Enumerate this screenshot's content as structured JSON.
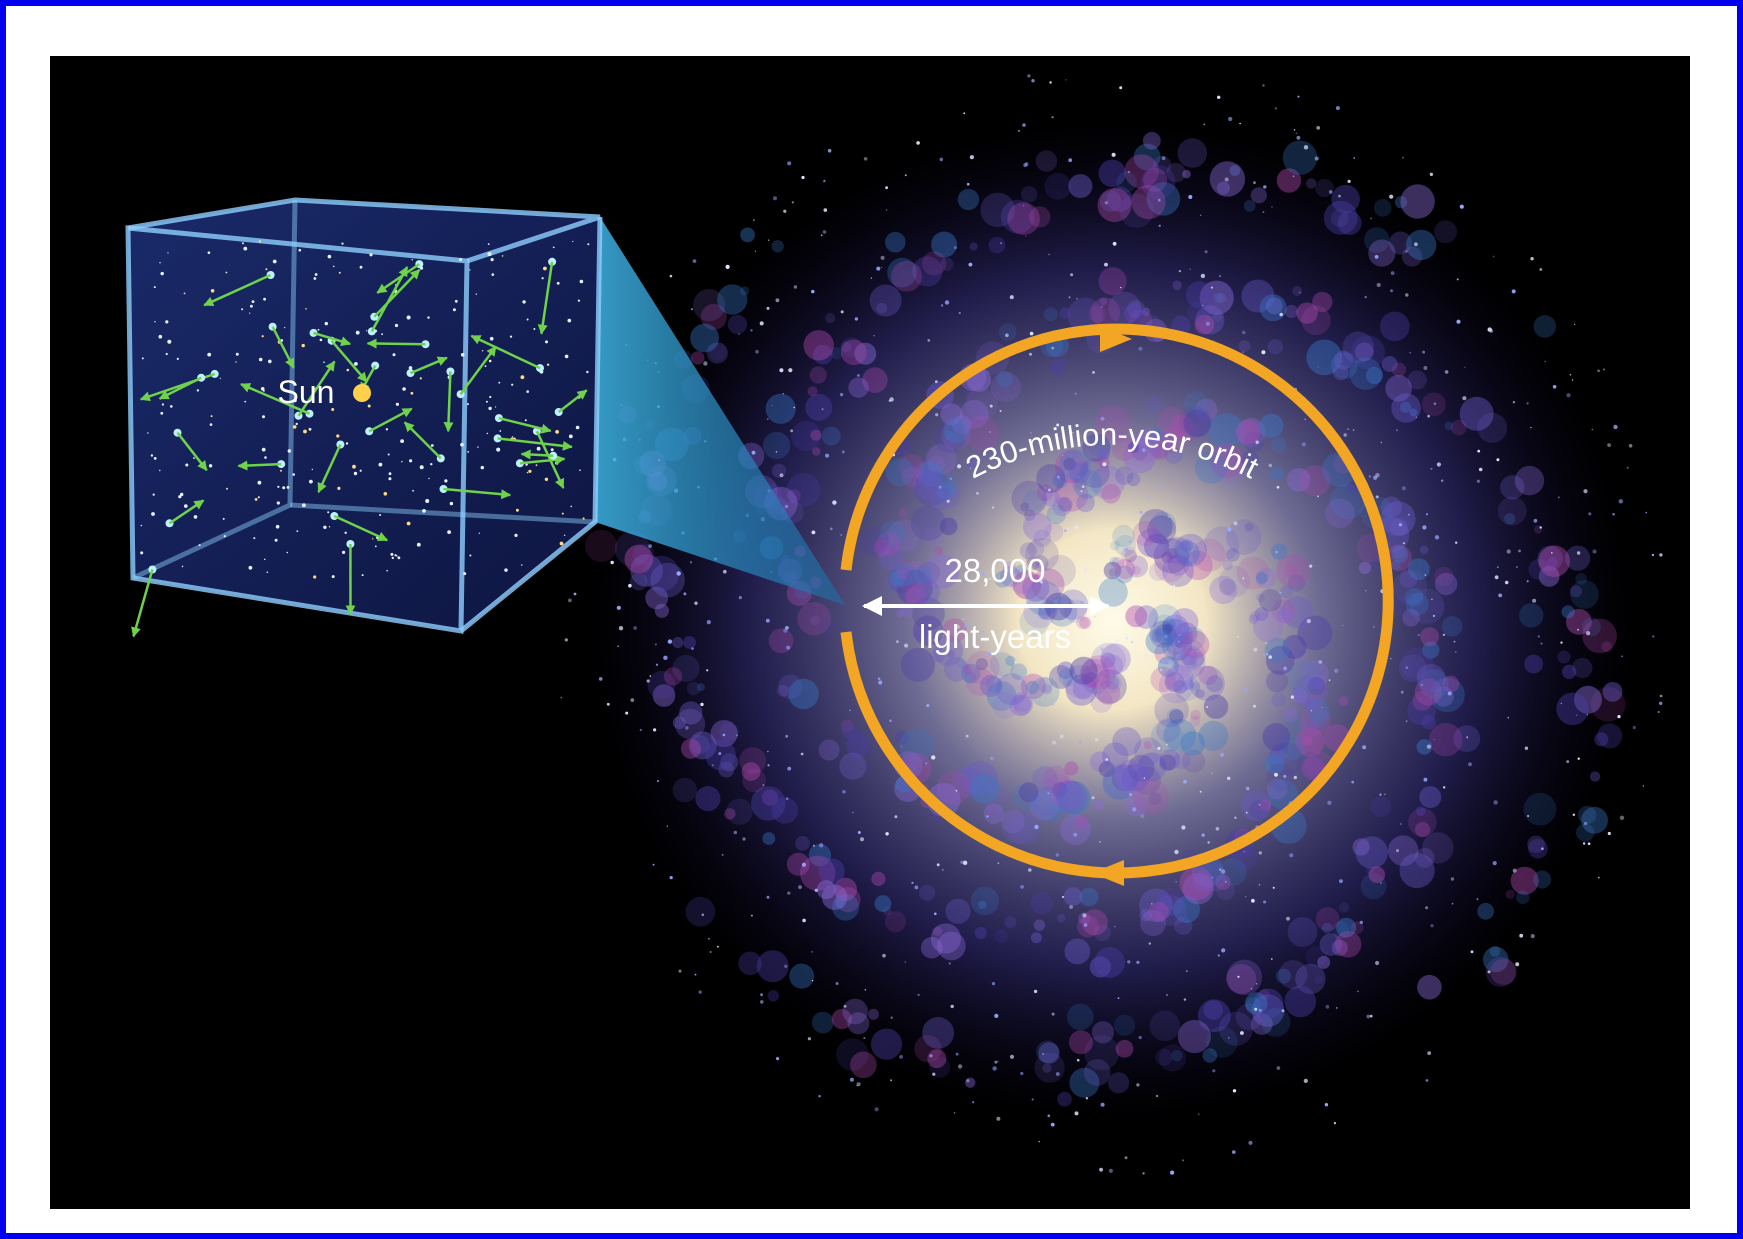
{
  "labels": {
    "sun": "Sun",
    "orbit": "230-million-year orbit",
    "distance": "28,000",
    "distance_unit": "light-years"
  }
}
